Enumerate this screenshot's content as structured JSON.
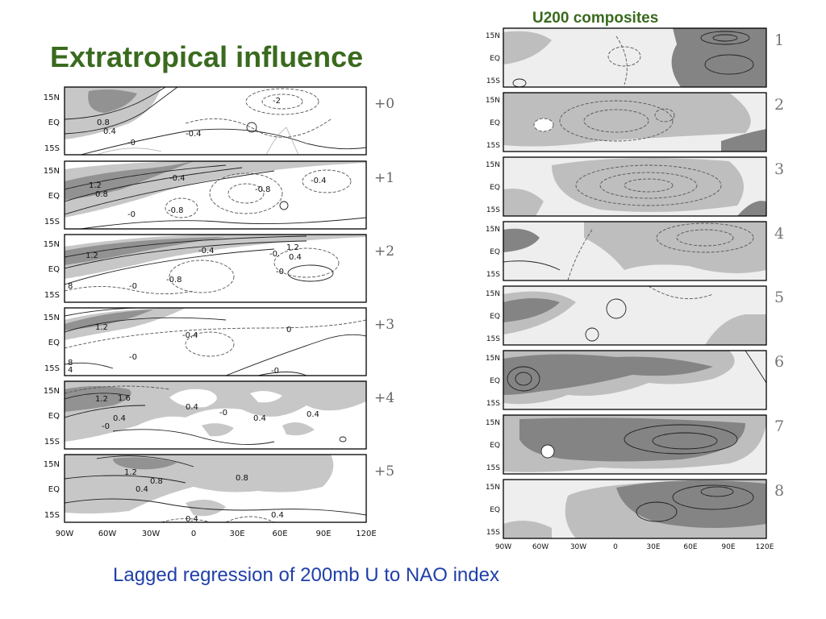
{
  "slide_title": "Extratropical influence",
  "right_title": "U200 composites",
  "caption": "Lagged regression of 200mb U to NAO index",
  "colors": {
    "title": "#3a6a1e",
    "caption": "#1f3fa8",
    "shade_light": "#c8c8c8",
    "shade_dark": "#8f8f8f"
  },
  "lat_labels": [
    "15N",
    "EQ",
    "15S"
  ],
  "lon_labels": [
    "90W",
    "60W",
    "30W",
    "0",
    "30E",
    "60E",
    "90E",
    "120E"
  ],
  "left_panels": [
    {
      "lag": "+0",
      "contour_labels": [
        "-2",
        "0.8",
        "0.4",
        "-0",
        "-0.4"
      ]
    },
    {
      "lag": "+1",
      "contour_labels": [
        "1.2",
        "0.8",
        "-0.4",
        "-0.8",
        "-0.4",
        "-0",
        "-0.8"
      ]
    },
    {
      "lag": "+2",
      "contour_labels": [
        "1.2",
        "-0.4",
        "-0.",
        "1.2",
        "0.4",
        "-0",
        "-0.8",
        "8",
        "-0"
      ]
    },
    {
      "lag": "+3",
      "contour_labels": [
        "1.2",
        "-0.4",
        "0",
        "-0",
        "8",
        "4",
        "-0"
      ]
    },
    {
      "lag": "+4",
      "contour_labels": [
        "1.2",
        "1.6",
        "0.4",
        "-0",
        "0.4",
        "0.4",
        "0.4",
        "-0"
      ]
    },
    {
      "lag": "+5",
      "contour_labels": [
        "1.2",
        "0.8",
        "0.4",
        "0.8",
        "0.4",
        "0.4"
      ]
    }
  ],
  "right_panels": [
    {
      "number": "1"
    },
    {
      "number": "2"
    },
    {
      "number": "3"
    },
    {
      "number": "4"
    },
    {
      "number": "5"
    },
    {
      "number": "6"
    },
    {
      "number": "7"
    },
    {
      "number": "8"
    }
  ]
}
